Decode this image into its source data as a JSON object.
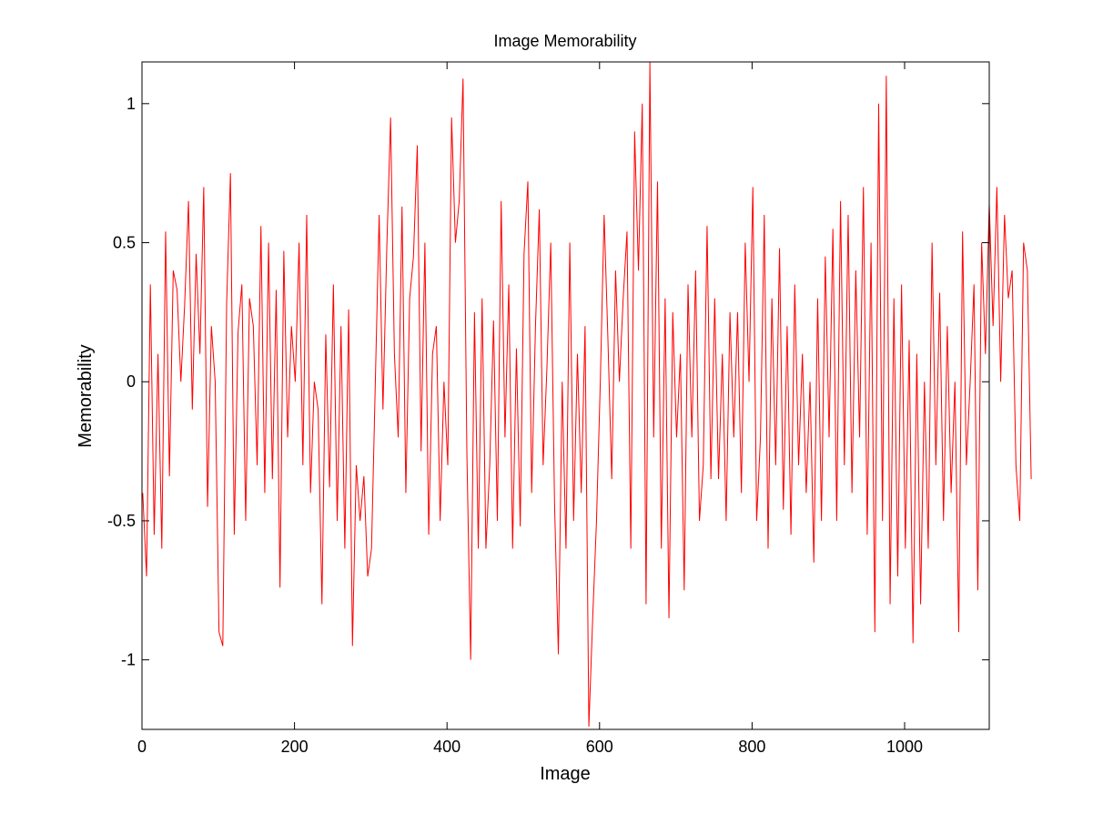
{
  "chart_data": {
    "type": "line",
    "title": "Image Memorability",
    "xlabel": "Image",
    "ylabel": "Memorability",
    "xlim": [
      0,
      1111
    ],
    "ylim": [
      -1.25,
      1.15
    ],
    "xticks": [
      0,
      200,
      400,
      600,
      800,
      1000
    ],
    "xtick_labels": [
      "0",
      "200",
      "400",
      "600",
      "800",
      "1000"
    ],
    "yticks": [
      -1,
      -0.5,
      0,
      0.5,
      1
    ],
    "ytick_labels": [
      "-1",
      "-0.5",
      "0",
      "0.5",
      "1"
    ],
    "grid": false,
    "legend": "none",
    "series": [
      {
        "color": "#ff0000",
        "x_start": 1,
        "x_step": 5,
        "values": [
          -0.4,
          -0.7,
          0.35,
          -0.55,
          0.1,
          -0.6,
          0.54,
          -0.34,
          0.4,
          0.33,
          0.0,
          0.28,
          0.65,
          -0.1,
          0.46,
          0.1,
          0.7,
          -0.45,
          0.2,
          0.0,
          -0.9,
          -0.95,
          0.28,
          0.75,
          -0.55,
          0.18,
          0.35,
          -0.5,
          0.3,
          0.2,
          -0.3,
          0.56,
          -0.4,
          0.5,
          -0.35,
          0.33,
          -0.74,
          0.47,
          -0.2,
          0.2,
          0.0,
          0.5,
          -0.3,
          0.6,
          -0.4,
          0.0,
          -0.1,
          -0.8,
          0.17,
          -0.38,
          0.35,
          -0.5,
          0.2,
          -0.6,
          0.26,
          -0.95,
          -0.3,
          -0.5,
          -0.34,
          -0.7,
          -0.6,
          0.0,
          0.6,
          -0.1,
          0.48,
          0.95,
          0.1,
          -0.2,
          0.63,
          -0.4,
          0.3,
          0.45,
          0.85,
          -0.25,
          0.5,
          -0.55,
          0.1,
          0.2,
          -0.5,
          0.0,
          -0.3,
          0.95,
          0.5,
          0.65,
          1.09,
          -0.25,
          -1.0,
          0.25,
          -0.6,
          0.3,
          -0.6,
          -0.3,
          0.22,
          -0.5,
          0.65,
          -0.2,
          0.35,
          -0.6,
          0.12,
          -0.52,
          0.46,
          0.72,
          -0.4,
          0.2,
          0.62,
          -0.3,
          0.05,
          0.5,
          -0.44,
          -0.98,
          0.0,
          -0.6,
          0.5,
          -0.5,
          0.1,
          -0.4,
          0.2,
          -1.24,
          -0.85,
          -0.5,
          0.0,
          0.6,
          0.15,
          -0.35,
          0.4,
          0.0,
          0.3,
          0.54,
          -0.6,
          0.9,
          0.4,
          1.0,
          -0.8,
          1.15,
          -0.2,
          0.72,
          -0.6,
          0.3,
          -0.85,
          0.25,
          -0.2,
          0.1,
          -0.75,
          0.35,
          -0.2,
          0.4,
          -0.5,
          -0.3,
          0.56,
          -0.35,
          0.3,
          -0.35,
          0.1,
          -0.5,
          0.25,
          -0.2,
          0.25,
          -0.4,
          0.5,
          0.0,
          0.7,
          -0.5,
          -0.2,
          0.6,
          -0.6,
          0.3,
          -0.3,
          0.48,
          -0.46,
          0.2,
          -0.55,
          0.35,
          -0.3,
          0.1,
          -0.4,
          0.0,
          -0.65,
          0.3,
          -0.5,
          0.45,
          -0.2,
          0.55,
          -0.5,
          0.65,
          -0.3,
          0.6,
          -0.4,
          0.4,
          -0.2,
          0.7,
          -0.55,
          0.5,
          -0.9,
          1.0,
          -0.5,
          1.1,
          -0.8,
          0.3,
          -0.7,
          0.35,
          -0.6,
          0.15,
          -0.94,
          0.1,
          -0.8,
          0.0,
          -0.6,
          0.5,
          -0.3,
          0.32,
          -0.5,
          0.2,
          -0.4,
          0.0,
          -0.9,
          0.54,
          -0.3,
          0.0,
          0.35,
          -0.75,
          0.5,
          0.1,
          0.64,
          0.2,
          0.7,
          0.0,
          0.6,
          0.3,
          0.4,
          -0.3,
          -0.5,
          0.5,
          0.4,
          -0.35
        ]
      }
    ]
  }
}
